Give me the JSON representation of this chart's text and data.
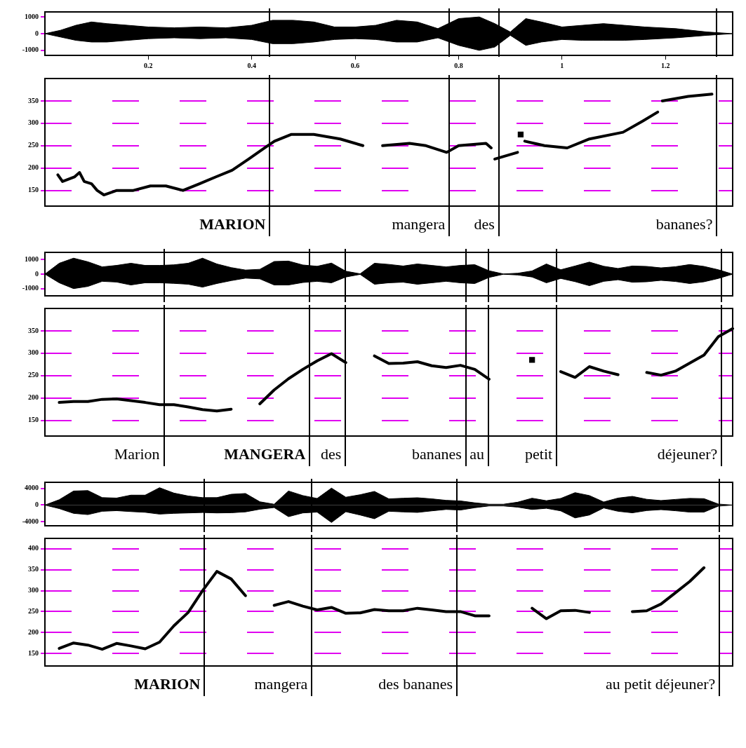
{
  "chart_data": [
    {
      "type": "area",
      "x": [
        0,
        0.03,
        0.06,
        0.09,
        0.12,
        0.16,
        0.2,
        0.25,
        0.3,
        0.35,
        0.4,
        0.44,
        0.48,
        0.52,
        0.56,
        0.6,
        0.64,
        0.68,
        0.72,
        0.76,
        0.8,
        0.84,
        0.87,
        0.9,
        0.93,
        0.96,
        1.0,
        1.04,
        1.08,
        1.12,
        1.16,
        1.22,
        1.28,
        1.33
      ],
      "series": [
        {
          "color": "#000000",
          "values": [
            0,
            200,
            500,
            700,
            600,
            500,
            400,
            350,
            400,
            350,
            500,
            800,
            800,
            700,
            400,
            400,
            500,
            800,
            700,
            300,
            900,
            1000,
            600,
            100,
            900,
            700,
            400,
            500,
            600,
            500,
            400,
            300,
            100,
            0
          ]
        },
        {
          "color": "#000000",
          "values": [
            0,
            -200,
            -400,
            -500,
            -500,
            -400,
            -300,
            -250,
            -300,
            -250,
            -350,
            -600,
            -600,
            -500,
            -350,
            -300,
            -350,
            -500,
            -500,
            -250,
            -700,
            -1000,
            -800,
            -100,
            -700,
            -500,
            -350,
            -400,
            -400,
            -400,
            -350,
            -250,
            -100,
            0
          ]
        }
      ],
      "xlim": [
        0,
        1.33
      ],
      "xticks": [
        0.2,
        0.4,
        0.6,
        0.8,
        1.0,
        1.2
      ],
      "ylim": [
        -1300,
        1300
      ],
      "yticks": [
        1000,
        0,
        -1000
      ],
      "grid": false,
      "legend": false
    },
    {
      "type": "line",
      "series": [
        {
          "color": "#000000",
          "x": [
            0.025,
            0.034,
            0.057,
            0.067,
            0.076,
            0.09,
            0.101,
            0.114,
            0.139,
            0.171,
            0.204,
            0.234,
            0.267,
            0.299,
            0.33,
            0.362,
            0.394,
            0.425,
            0.444,
            0.476,
            0.52,
            0.571,
            0.615,
            0.635,
            0.653,
            0.705,
            0.737,
            0.777,
            0.8,
            0.853,
            0.863,
            0.866,
            0.87,
            0.914,
            0.917,
            0.92,
            0.924,
            0.928,
            0.966,
            1.01,
            1.053,
            1.118,
            1.156,
            1.185,
            1.19,
            1.194,
            1.244,
            1.29
          ],
          "values": [
            185,
            170,
            180,
            190,
            170,
            165,
            150,
            140,
            150,
            150,
            160,
            160,
            150,
            165,
            180,
            195,
            220,
            245,
            260,
            275,
            275,
            265,
            250,
            null,
            250,
            255,
            250,
            235,
            250,
            255,
            245,
            null,
            220,
            235,
            null,
            275,
            null,
            260,
            250,
            245,
            265,
            280,
            305,
            325,
            null,
            350,
            360,
            365
          ]
        }
      ],
      "xlim": [
        0,
        1.33
      ],
      "ylim": [
        115,
        400
      ],
      "yticks": [
        350,
        300,
        250,
        200,
        150
      ],
      "tick_labels": "y",
      "grid": "y",
      "legend": false,
      "marker": "none",
      "line_style": "solid",
      "annotations": [
        "MARION",
        "mangera",
        "des",
        "bananes?"
      ]
    },
    {
      "type": "area",
      "categories": [
        null,
        null,
        null,
        null,
        null,
        null,
        null,
        null,
        null,
        null,
        null,
        null,
        null,
        null,
        null,
        null,
        null,
        null,
        null,
        null,
        null,
        null,
        null,
        null,
        null,
        null,
        null,
        null,
        null,
        null,
        null,
        null,
        null,
        null,
        null,
        null,
        null,
        null,
        null,
        null,
        null,
        null,
        null,
        null,
        null,
        null,
        null,
        null,
        null
      ],
      "series": [
        {
          "color": "#000000",
          "values": [
            0,
            750,
            1100,
            850,
            500,
            600,
            750,
            600,
            600,
            640,
            750,
            1100,
            700,
            450,
            280,
            330,
            870,
            900,
            630,
            540,
            760,
            200,
            20,
            750,
            670,
            560,
            700,
            600,
            500,
            600,
            650,
            230,
            10,
            60,
            220,
            700,
            300,
            560,
            830,
            540,
            390,
            560,
            530,
            430,
            510,
            660,
            530,
            300,
            0
          ]
        },
        {
          "color": "#000000",
          "values": [
            0,
            -600,
            -1000,
            -850,
            -500,
            -550,
            -750,
            -600,
            -600,
            -640,
            -700,
            -900,
            -650,
            -450,
            -280,
            -330,
            -750,
            -750,
            -580,
            -500,
            -600,
            -200,
            -20,
            -700,
            -600,
            -560,
            -700,
            -600,
            -500,
            -600,
            -650,
            -230,
            -10,
            -60,
            -200,
            -600,
            -300,
            -520,
            -800,
            -500,
            -390,
            -560,
            -530,
            -430,
            -510,
            -650,
            -530,
            -300,
            0
          ]
        }
      ],
      "ylim": [
        -1500,
        1500
      ],
      "yticks": [
        1000,
        0,
        -1000
      ],
      "tick_labels": "y",
      "grid": false,
      "legend": false
    },
    {
      "type": "line",
      "categories": [
        null,
        null,
        null,
        null,
        null,
        null,
        null,
        null,
        null,
        null,
        null,
        null,
        null,
        null,
        null,
        null,
        null,
        null,
        null,
        null,
        null,
        null,
        null,
        null,
        null,
        null,
        null,
        null,
        null,
        null,
        null,
        null,
        null,
        null,
        null,
        null,
        null,
        null,
        null,
        null,
        null,
        null,
        null,
        null,
        null,
        null,
        null,
        null,
        null
      ],
      "series": [
        {
          "color": "#000000",
          "values": [
            null,
            190,
            192,
            192,
            197,
            198,
            194,
            190,
            185,
            185,
            180,
            174,
            171,
            175,
            null,
            187,
            218,
            243,
            264,
            283,
            299,
            279,
            null,
            294,
            277,
            278,
            281,
            272,
            268,
            273,
            264,
            242,
            null,
            null,
            285,
            null,
            259,
            246,
            270,
            260,
            252,
            null,
            257,
            251,
            260,
            278,
            296,
            337,
            355
          ]
        }
      ],
      "ylim": [
        115,
        400
      ],
      "yticks": [
        350,
        300,
        250,
        200,
        150
      ],
      "tick_labels": "y",
      "grid": "y",
      "legend": false,
      "marker": "none",
      "line_style": "solid",
      "annotations": [
        "Marion",
        "MANGERA",
        "des",
        "bananes",
        "au",
        "petit",
        "déjeuner?"
      ]
    },
    {
      "type": "area",
      "categories": [
        null,
        null,
        null,
        null,
        null,
        null,
        null,
        null,
        null,
        null,
        null,
        null,
        null,
        null,
        null,
        null,
        null,
        null,
        null,
        null,
        null,
        null,
        null,
        null,
        null,
        null,
        null,
        null,
        null,
        null,
        null,
        null,
        null,
        null,
        null,
        null,
        null,
        null,
        null,
        null,
        null,
        null,
        null,
        null,
        null,
        null,
        null,
        null,
        null
      ],
      "series": [
        {
          "color": "#000000",
          "values": [
            0,
            1300,
            3400,
            3500,
            1800,
            1700,
            2400,
            2400,
            4200,
            2900,
            2200,
            1800,
            1800,
            2600,
            2800,
            800,
            200,
            3400,
            2300,
            1600,
            4100,
            1900,
            2500,
            3300,
            1500,
            1650,
            1770,
            1500,
            1150,
            1000,
            550,
            200,
            200,
            700,
            1660,
            1060,
            1600,
            3000,
            2300,
            750,
            1700,
            2100,
            1400,
            1100,
            1370,
            1620,
            1550,
            250,
            0
          ]
        },
        {
          "color": "#000000",
          "values": [
            0,
            -850,
            -2000,
            -2300,
            -1500,
            -1350,
            -1570,
            -1750,
            -2180,
            -2000,
            -1900,
            -1800,
            -1900,
            -1850,
            -1640,
            -1000,
            -600,
            -2800,
            -1900,
            -1700,
            -4200,
            -1600,
            -2400,
            -3300,
            -1500,
            -1650,
            -1770,
            -1400,
            -1050,
            -1200,
            -640,
            -200,
            -200,
            -500,
            -1060,
            -780,
            -1400,
            -3100,
            -2400,
            -700,
            -1500,
            -1870,
            -1330,
            -1100,
            -1370,
            -1700,
            -1700,
            -250,
            0
          ]
        }
      ],
      "ylim": [
        -5000,
        5500
      ],
      "yticks": [
        4000,
        0,
        -4000
      ],
      "tick_labels": "y",
      "grid": false,
      "legend": false
    },
    {
      "type": "line",
      "categories": [
        null,
        null,
        null,
        null,
        null,
        null,
        null,
        null,
        null,
        null,
        null,
        null,
        null,
        null,
        null,
        null,
        null,
        null,
        null,
        null,
        null,
        null,
        null,
        null,
        null,
        null,
        null,
        null,
        null,
        null,
        null,
        null,
        null,
        null,
        null,
        null,
        null,
        null,
        null,
        null,
        null,
        null,
        null,
        null,
        null,
        null,
        null,
        null,
        null
      ],
      "series": [
        {
          "color": "#000000",
          "values": [
            null,
            162,
            175,
            170,
            160,
            174,
            168,
            161,
            177,
            216,
            248,
            300,
            346,
            328,
            288,
            null,
            265,
            274,
            263,
            254,
            260,
            246,
            247,
            255,
            252,
            252,
            258,
            254,
            250,
            250,
            240,
            240,
            null,
            null,
            258,
            233,
            252,
            253,
            248,
            null,
            null,
            250,
            252,
            268,
            295,
            322,
            355,
            null,
            null
          ]
        }
      ],
      "ylim": [
        120,
        425
      ],
      "yticks": [
        400,
        350,
        300,
        250,
        200,
        150
      ],
      "tick_labels": "y",
      "grid": "y",
      "legend": false,
      "marker": "none",
      "line_style": "solid",
      "annotations": [
        "MARION",
        "mangera",
        "des bananes",
        "au petit déjeuner?"
      ]
    }
  ]
}
